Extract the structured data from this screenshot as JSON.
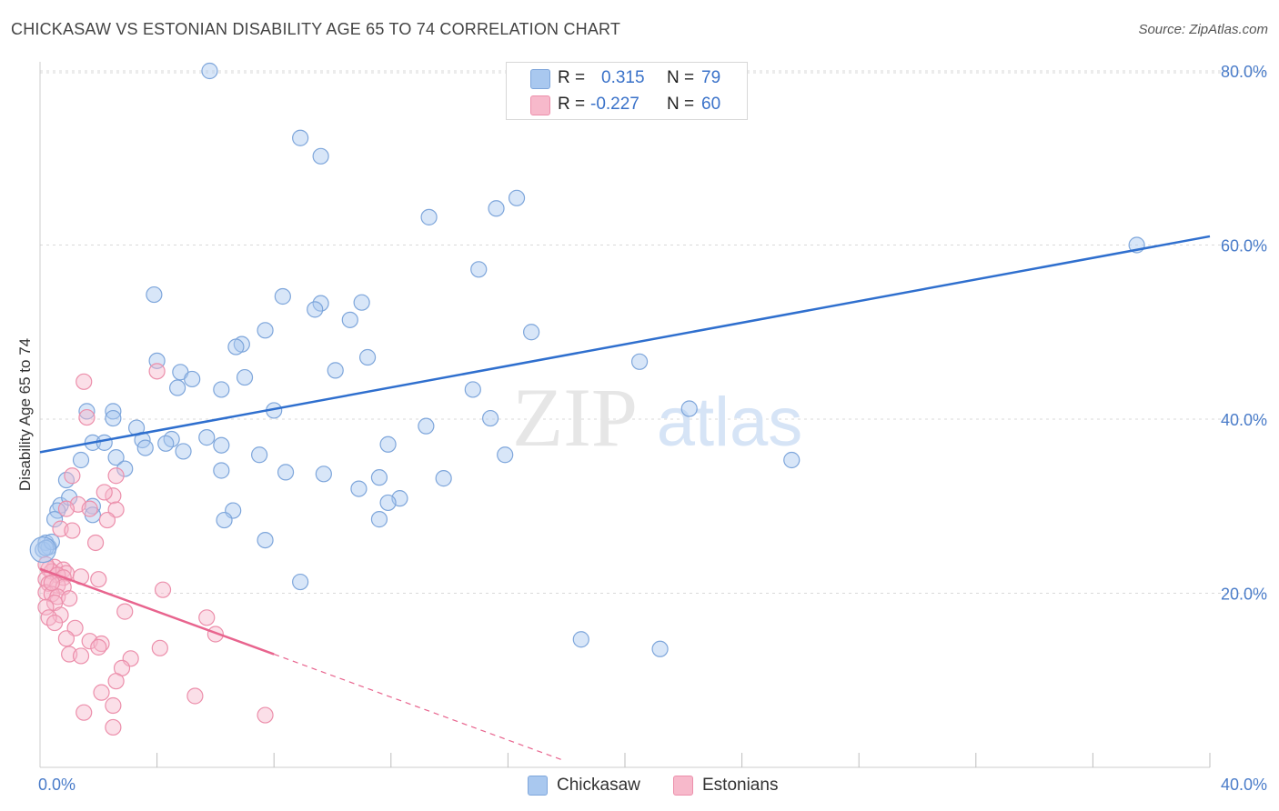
{
  "title": "CHICKASAW VS ESTONIAN DISABILITY AGE 65 TO 74 CORRELATION CHART",
  "source": "Source: ZipAtlas.com",
  "watermark": {
    "zip": "ZIP",
    "atlas": "atlas"
  },
  "legend": {
    "r_label": "R =",
    "n_label": "N =",
    "rows": [
      {
        "r": "0.315",
        "n": "79"
      },
      {
        "r": "-0.227",
        "n": "60"
      }
    ]
  },
  "colors": {
    "blue_fill": "#a9c8ef",
    "blue_stroke": "#7ea6db",
    "blue_line": "#2f6fce",
    "pink_fill": "#f7b9cb",
    "pink_stroke": "#ec8fab",
    "pink_line": "#e8648e",
    "grid": "#d9d9d9"
  },
  "chart_data": {
    "type": "scatter",
    "xlabel": "",
    "ylabel": "Disability Age 65 to 74",
    "xlim": [
      0,
      40
    ],
    "ylim": [
      0,
      80
    ],
    "x_tick_labels": [
      "0.0%",
      "40.0%"
    ],
    "y_tick_labels": [
      "20.0%",
      "40.0%",
      "60.0%",
      "80.0%"
    ],
    "y_ticks": [
      20,
      40,
      60,
      80
    ],
    "x_minor_ticks": [
      4,
      8,
      12,
      16,
      20,
      24,
      28,
      32,
      36,
      40
    ],
    "series": [
      {
        "name": "Chickasaw",
        "color": "blue",
        "trend": {
          "x": [
            0,
            40
          ],
          "y": [
            36.2,
            61.0
          ],
          "dashed_from": null
        },
        "points": [
          [
            5.8,
            80.0
          ],
          [
            8.9,
            72.3
          ],
          [
            9.6,
            70.2
          ],
          [
            16.3,
            65.4
          ],
          [
            15.6,
            64.2
          ],
          [
            13.3,
            63.2
          ],
          [
            15.0,
            57.2
          ],
          [
            37.5,
            60.0
          ],
          [
            3.9,
            54.3
          ],
          [
            8.3,
            54.1
          ],
          [
            9.6,
            53.3
          ],
          [
            9.4,
            52.6
          ],
          [
            11.0,
            53.4
          ],
          [
            10.6,
            51.4
          ],
          [
            7.7,
            50.2
          ],
          [
            6.9,
            48.6
          ],
          [
            6.7,
            48.3
          ],
          [
            16.8,
            50.0
          ],
          [
            11.2,
            47.1
          ],
          [
            10.1,
            45.6
          ],
          [
            20.5,
            46.6
          ],
          [
            4.0,
            46.7
          ],
          [
            4.8,
            45.4
          ],
          [
            5.2,
            44.6
          ],
          [
            7.0,
            44.8
          ],
          [
            4.7,
            43.6
          ],
          [
            6.2,
            43.4
          ],
          [
            14.8,
            43.4
          ],
          [
            1.6,
            40.9
          ],
          [
            2.5,
            40.9
          ],
          [
            2.5,
            40.1
          ],
          [
            8.0,
            41.0
          ],
          [
            22.2,
            41.2
          ],
          [
            3.3,
            39.0
          ],
          [
            13.2,
            39.2
          ],
          [
            15.4,
            40.1
          ],
          [
            1.8,
            37.3
          ],
          [
            2.2,
            37.3
          ],
          [
            3.5,
            37.6
          ],
          [
            4.5,
            37.7
          ],
          [
            4.3,
            37.2
          ],
          [
            5.7,
            37.9
          ],
          [
            6.2,
            37.0
          ],
          [
            3.6,
            36.7
          ],
          [
            11.9,
            37.1
          ],
          [
            4.9,
            36.3
          ],
          [
            2.6,
            35.6
          ],
          [
            1.4,
            35.3
          ],
          [
            7.5,
            35.9
          ],
          [
            15.9,
            35.9
          ],
          [
            25.7,
            35.3
          ],
          [
            2.9,
            34.3
          ],
          [
            6.2,
            34.1
          ],
          [
            8.4,
            33.9
          ],
          [
            9.7,
            33.7
          ],
          [
            0.9,
            33.0
          ],
          [
            11.6,
            33.3
          ],
          [
            13.8,
            33.2
          ],
          [
            10.9,
            32.0
          ],
          [
            12.3,
            30.9
          ],
          [
            11.9,
            30.4
          ],
          [
            0.7,
            30.1
          ],
          [
            1.8,
            30.0
          ],
          [
            1.0,
            31.0
          ],
          [
            0.6,
            29.5
          ],
          [
            1.8,
            29.0
          ],
          [
            6.6,
            29.5
          ],
          [
            0.5,
            28.5
          ],
          [
            6.3,
            28.4
          ],
          [
            11.6,
            28.5
          ],
          [
            7.7,
            26.1
          ],
          [
            0.2,
            25.8
          ],
          [
            0.3,
            25.3
          ],
          [
            8.9,
            21.3
          ],
          [
            18.5,
            14.7
          ],
          [
            21.2,
            13.6
          ],
          [
            0.1,
            25.0
          ],
          [
            0.4,
            25.9
          ],
          [
            0.2,
            25.2
          ]
        ]
      },
      {
        "name": "Estonians",
        "color": "pink",
        "trend": {
          "x": [
            0,
            8.0
          ],
          "y": [
            22.8,
            13.0
          ],
          "dashed_to": [
            17.9,
            0.8
          ]
        },
        "points": [
          [
            1.5,
            44.3
          ],
          [
            4.0,
            45.5
          ],
          [
            1.6,
            40.2
          ],
          [
            1.1,
            33.5
          ],
          [
            2.6,
            33.5
          ],
          [
            1.3,
            30.2
          ],
          [
            2.5,
            31.2
          ],
          [
            2.2,
            31.6
          ],
          [
            2.6,
            29.6
          ],
          [
            1.7,
            29.7
          ],
          [
            0.9,
            29.7
          ],
          [
            2.3,
            28.4
          ],
          [
            0.7,
            27.4
          ],
          [
            1.1,
            27.2
          ],
          [
            1.9,
            25.8
          ],
          [
            0.5,
            23.0
          ],
          [
            0.3,
            22.8
          ],
          [
            0.4,
            22.5
          ],
          [
            0.8,
            22.7
          ],
          [
            0.9,
            22.3
          ],
          [
            0.6,
            22.1
          ],
          [
            0.8,
            21.8
          ],
          [
            1.4,
            21.9
          ],
          [
            2.0,
            21.6
          ],
          [
            0.2,
            21.6
          ],
          [
            0.3,
            21.1
          ],
          [
            0.6,
            20.9
          ],
          [
            0.8,
            20.7
          ],
          [
            4.2,
            20.4
          ],
          [
            0.2,
            20.1
          ],
          [
            0.4,
            19.9
          ],
          [
            0.6,
            19.6
          ],
          [
            1.0,
            19.4
          ],
          [
            0.5,
            18.9
          ],
          [
            2.9,
            17.9
          ],
          [
            0.2,
            18.4
          ],
          [
            0.7,
            17.5
          ],
          [
            0.3,
            17.2
          ],
          [
            5.7,
            17.2
          ],
          [
            0.5,
            16.6
          ],
          [
            1.2,
            16.0
          ],
          [
            6.0,
            15.3
          ],
          [
            0.9,
            14.8
          ],
          [
            1.7,
            14.5
          ],
          [
            2.1,
            14.2
          ],
          [
            2.0,
            13.8
          ],
          [
            4.1,
            13.7
          ],
          [
            1.0,
            13.0
          ],
          [
            1.4,
            12.8
          ],
          [
            3.1,
            12.5
          ],
          [
            2.8,
            11.4
          ],
          [
            2.6,
            9.9
          ],
          [
            2.1,
            8.6
          ],
          [
            5.3,
            8.2
          ],
          [
            2.5,
            7.1
          ],
          [
            1.5,
            6.3
          ],
          [
            7.7,
            6.0
          ],
          [
            2.5,
            4.6
          ],
          [
            0.2,
            23.3
          ],
          [
            0.4,
            21.2
          ]
        ]
      }
    ]
  },
  "bottom_legend": [
    "Chickasaw",
    "Estonians"
  ]
}
